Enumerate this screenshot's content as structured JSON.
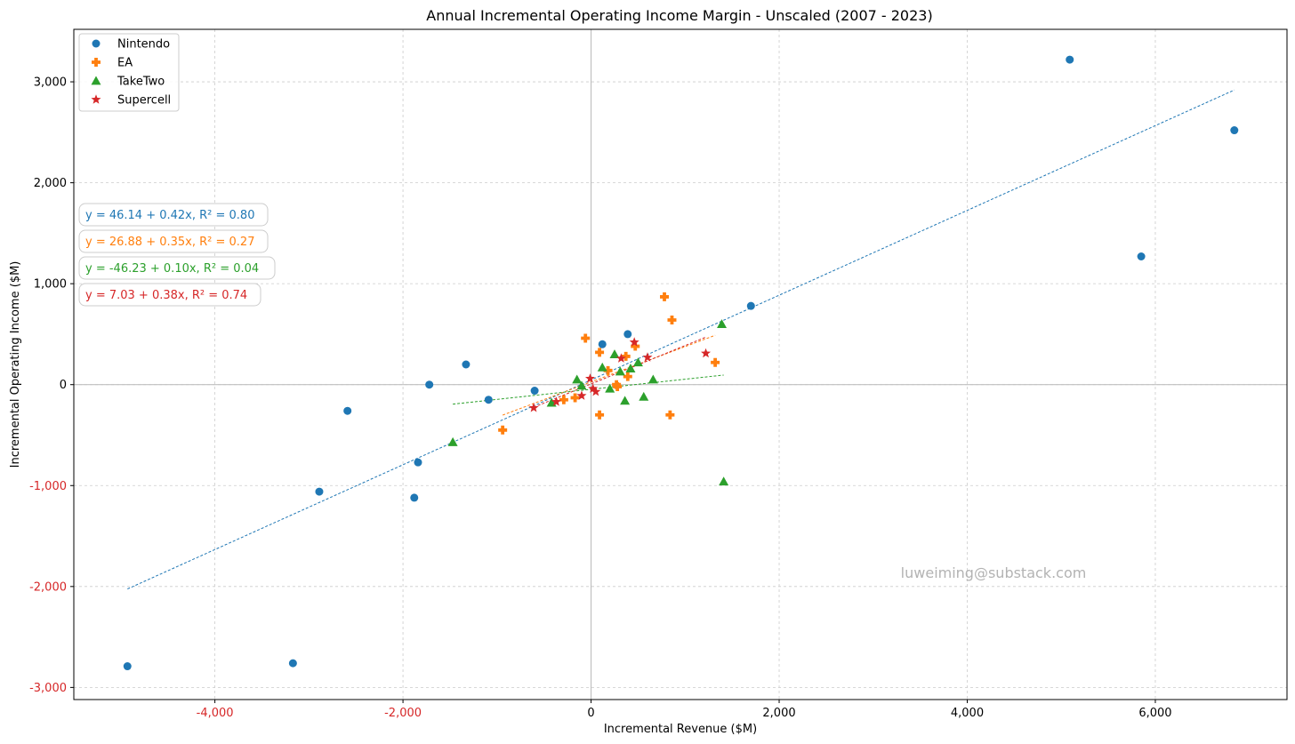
{
  "chart_data": {
    "type": "scatter",
    "title": "Annual Incremental Operating Income Margin - Unscaled (2007 - 2023)",
    "xlabel": "Incremental Revenue ($M)",
    "ylabel": "Incremental Operating Income ($M)",
    "xlim": [
      -5500,
      7400
    ],
    "ylim": [
      -3120,
      3520
    ],
    "x_ticks": [
      {
        "value": -4000,
        "label": "-4,000"
      },
      {
        "value": -2000,
        "label": "-2,000"
      },
      {
        "value": 0,
        "label": "0"
      },
      {
        "value": 2000,
        "label": "2,000"
      },
      {
        "value": 4000,
        "label": "4,000"
      },
      {
        "value": 6000,
        "label": "6,000"
      }
    ],
    "y_ticks": [
      {
        "value": -3000,
        "label": "-3,000"
      },
      {
        "value": -2000,
        "label": "-2,000"
      },
      {
        "value": -1000,
        "label": "-1,000"
      },
      {
        "value": 0,
        "label": "0"
      },
      {
        "value": 1000,
        "label": "1,000"
      },
      {
        "value": 2000,
        "label": "2,000"
      },
      {
        "value": 3000,
        "label": "3,000"
      }
    ],
    "negative_tick_color": "#d62728",
    "grid": true,
    "legend_position": "top-left",
    "series": [
      {
        "name": "Nintendo",
        "marker": "circle",
        "color": "#1f77b4",
        "points": [
          [
            -4930,
            -2790
          ],
          [
            -3170,
            -2760
          ],
          [
            -2890,
            -1060
          ],
          [
            -2590,
            -260
          ],
          [
            -1880,
            -1120
          ],
          [
            -1840,
            -770
          ],
          [
            -1720,
            0
          ],
          [
            -1330,
            200
          ],
          [
            -1090,
            -150
          ],
          [
            -600,
            -60
          ],
          [
            120,
            400
          ],
          [
            390,
            500
          ],
          [
            1700,
            780
          ],
          [
            5090,
            3220
          ],
          [
            5850,
            1270
          ],
          [
            6840,
            2520
          ]
        ],
        "fit": {
          "x_range": [
            -4930,
            6840
          ],
          "intercept": 46.14,
          "slope": 0.42
        },
        "equation": "y = 46.14 + 0.42x, R² = 0.80"
      },
      {
        "name": "EA",
        "marker": "plus",
        "color": "#ff7f0e",
        "points": [
          [
            -940,
            -450
          ],
          [
            -290,
            -150
          ],
          [
            -170,
            -130
          ],
          [
            -60,
            460
          ],
          [
            90,
            320
          ],
          [
            90,
            -300
          ],
          [
            180,
            140
          ],
          [
            270,
            0
          ],
          [
            280,
            -20
          ],
          [
            370,
            280
          ],
          [
            390,
            80
          ],
          [
            470,
            380
          ],
          [
            780,
            870
          ],
          [
            840,
            -300
          ],
          [
            860,
            640
          ],
          [
            1320,
            220
          ]
        ],
        "fit": {
          "x_range": [
            -940,
            1320
          ],
          "intercept": 26.88,
          "slope": 0.35
        },
        "equation": "y = 26.88 + 0.35x, R² = 0.27"
      },
      {
        "name": "TakeTwo",
        "marker": "triangle",
        "color": "#2ca02c",
        "points": [
          [
            -1470,
            -570
          ],
          [
            -420,
            -180
          ],
          [
            -150,
            50
          ],
          [
            -100,
            -10
          ],
          [
            120,
            170
          ],
          [
            200,
            -40
          ],
          [
            250,
            300
          ],
          [
            310,
            130
          ],
          [
            360,
            -160
          ],
          [
            420,
            160
          ],
          [
            500,
            220
          ],
          [
            560,
            -120
          ],
          [
            660,
            50
          ],
          [
            1390,
            600
          ],
          [
            1410,
            -960
          ]
        ],
        "fit": {
          "x_range": [
            -1470,
            1410
          ],
          "intercept": -46.23,
          "slope": 0.1
        },
        "equation": "y = -46.23 + 0.10x, R² = 0.04"
      },
      {
        "name": "Supercell",
        "marker": "star",
        "color": "#d62728",
        "points": [
          [
            -610,
            -230
          ],
          [
            -370,
            -170
          ],
          [
            -100,
            -110
          ],
          [
            -10,
            60
          ],
          [
            20,
            -40
          ],
          [
            50,
            -70
          ],
          [
            320,
            260
          ],
          [
            460,
            420
          ],
          [
            600,
            270
          ],
          [
            1220,
            310
          ]
        ],
        "fit": {
          "x_range": [
            -610,
            1220
          ],
          "intercept": 7.03,
          "slope": 0.38
        },
        "equation": "y = 7.03 + 0.38x, R² = 0.74"
      }
    ]
  },
  "watermark": "luweiming@substack.com",
  "equation_colors": [
    "#1f77b4",
    "#ff7f0e",
    "#2ca02c",
    "#d62728"
  ]
}
